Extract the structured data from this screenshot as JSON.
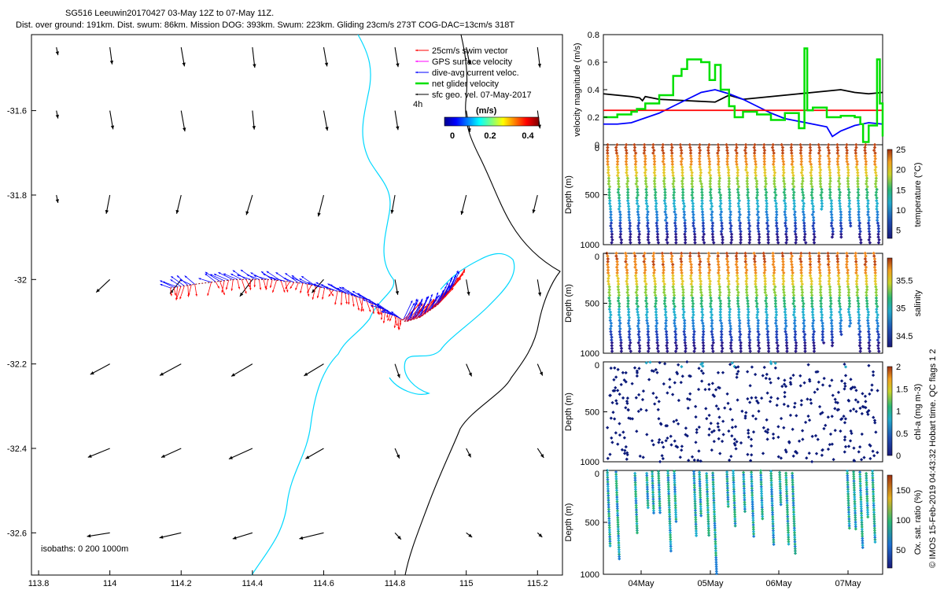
{
  "header": {
    "line1": "SG516 Leeuwin20170427 03-May 12Z to 07-May 11Z.",
    "line2": "Dist. over ground: 191km. Dist. swum: 86km. Mission DOG: 393km. Swum: 223km. Gliding 23cm/s 273T COG-DAC=13cm/s 318T"
  },
  "credit": "© IMOS 15-Feb-2019 04:43:32 Hobart time. QC flags 1  2",
  "colors": {
    "swim": "#ff0000",
    "gps": "#ff00ff",
    "dac": "#0000ff",
    "net": "#00e000",
    "geo": "#000000",
    "isobath_shallow": "#00d8ff",
    "isobath_deep": "#000000"
  },
  "chart_data": [
    {
      "type": "scatter",
      "title": "glider track map",
      "xlim": [
        113.78,
        115.27
      ],
      "ylim": [
        -32.7,
        -31.42
      ],
      "xticks": [
        113.8,
        114,
        114.2,
        114.4,
        114.6,
        114.8,
        115,
        115.2
      ],
      "xtick_labels": [
        "113.8",
        "114",
        "114.2",
        "114.4",
        "114.6",
        "114.8",
        "115",
        "115.2"
      ],
      "yticks": [
        -31.6,
        -31.8,
        -32,
        -32.2,
        -32.4,
        -32.6
      ],
      "ytick_labels": [
        "-31.6",
        "-31.8",
        "-32",
        "-32.2",
        "-32.4",
        "-32.6"
      ],
      "legend": [
        {
          "label": "25cm/s swim vector",
          "color": "#ff0000"
        },
        {
          "label": "GPS surface velocity",
          "color": "#ff00ff"
        },
        {
          "label": "dive-avg current veloc.",
          "color": "#0000ff"
        },
        {
          "label": "net glider velocity",
          "color": "#00e000"
        },
        {
          "label": "sfc geo. vel. 07-May-2017",
          "color": "#000000"
        }
      ],
      "legend_note": "4h",
      "colorbar": {
        "label": "(m/s)",
        "ticks": [
          "0",
          "0.2",
          "0.4"
        ],
        "range": [
          0,
          0.5
        ]
      },
      "isobath_note": "isobaths: 0   200  1000m",
      "track": {
        "lon": [
          114.17,
          114.25,
          114.35,
          114.45,
          114.55,
          114.65,
          114.73,
          114.79,
          114.83,
          114.87,
          114.92,
          114.96
        ],
        "lat": [
          -32.02,
          -32.01,
          -32.0,
          -32.0,
          -32.01,
          -32.03,
          -32.05,
          -32.08,
          -32.1,
          -32.09,
          -32.06,
          -32.02
        ]
      },
      "geo_vectors": {
        "lon": [
          114,
          114.2,
          114.4,
          114.6,
          114.8,
          115,
          115.2
        ],
        "lat": [
          -31.45,
          -31.6,
          -31.8,
          -32.0,
          -32.2,
          -32.4,
          -32.6
        ],
        "note": "surface geostrophic velocity field, mostly southward to south-westward"
      }
    },
    {
      "type": "line",
      "title": "velocity magnitude",
      "ylabel": "velocity magnitude (m/s)",
      "ylim": [
        0,
        0.8
      ],
      "yticks": [
        0,
        0.2,
        0.4,
        0.6,
        0.8
      ],
      "ytick_labels": [
        "0",
        "0.2",
        "0.4",
        "0.6",
        "0.8"
      ],
      "xlim": [
        0,
        100
      ],
      "series": [
        {
          "name": "sfc geo. vel.",
          "color": "#000000",
          "x": [
            0,
            5,
            10,
            13,
            14,
            15,
            20,
            30,
            40,
            45,
            50,
            55,
            60,
            65,
            70,
            75,
            80,
            85,
            90,
            95,
            100
          ],
          "values": [
            0.37,
            0.36,
            0.35,
            0.34,
            0.32,
            0.35,
            0.33,
            0.32,
            0.31,
            0.36,
            0.33,
            0.34,
            0.35,
            0.36,
            0.37,
            0.38,
            0.39,
            0.4,
            0.38,
            0.37,
            0.38
          ]
        },
        {
          "name": "dive-avg current",
          "color": "#0000ff",
          "x": [
            0,
            5,
            10,
            20,
            25,
            30,
            35,
            40,
            45,
            50,
            55,
            60,
            65,
            70,
            75,
            80,
            82,
            85,
            90,
            95,
            100
          ],
          "values": [
            0.15,
            0.15,
            0.16,
            0.23,
            0.28,
            0.33,
            0.38,
            0.4,
            0.37,
            0.33,
            0.28,
            0.23,
            0.19,
            0.17,
            0.15,
            0.13,
            0.06,
            0.1,
            0.14,
            0.16,
            0.15
          ]
        },
        {
          "name": "25cm/s swim",
          "color": "#ff0000",
          "x": [
            0,
            100
          ],
          "values": [
            0.25,
            0.25
          ]
        },
        {
          "name": "net glider velocity",
          "color": "#00e000",
          "x": [
            0,
            5,
            10,
            12,
            15,
            20,
            25,
            28,
            30,
            35,
            38,
            40,
            42,
            45,
            47,
            50,
            55,
            60,
            65,
            70,
            72,
            73,
            75,
            80,
            85,
            90,
            92,
            93,
            95,
            98,
            99,
            100
          ],
          "values": [
            0.2,
            0.22,
            0.24,
            0.26,
            0.3,
            0.36,
            0.5,
            0.55,
            0.62,
            0.6,
            0.47,
            0.58,
            0.4,
            0.28,
            0.2,
            0.24,
            0.22,
            0.18,
            0.23,
            0.12,
            0.7,
            0.25,
            0.27,
            0.2,
            0.21,
            0.2,
            0.15,
            0.02,
            0.14,
            0.62,
            0.3,
            0.06
          ]
        }
      ]
    },
    {
      "type": "scatter",
      "title": "temperature sections",
      "ylabel": "Depth (m)",
      "yticks": [
        0,
        500,
        1000
      ],
      "ytick_labels": [
        "0",
        "500",
        "1000"
      ],
      "colorbar": {
        "label": "temperature (°C)",
        "ticks": [
          "25",
          "20",
          "15",
          "10",
          "5"
        ],
        "range": [
          3,
          25
        ]
      }
    },
    {
      "type": "scatter",
      "title": "salinity sections",
      "ylabel": "Depth (m)",
      "yticks": [
        0,
        500,
        1000
      ],
      "ytick_labels": [
        "0",
        "500",
        "1000"
      ],
      "colorbar": {
        "label": "salinity",
        "ticks": [
          "35.5",
          "35",
          "34.5"
        ],
        "range": [
          34.3,
          35.9
        ]
      }
    },
    {
      "type": "scatter",
      "title": "chlorophyll sections",
      "ylabel": "Depth (m)",
      "yticks": [
        0,
        500,
        1000
      ],
      "ytick_labels": [
        "0",
        "500",
        "1000"
      ],
      "colorbar": {
        "label": "chl-a (mg m-3)",
        "ticks": [
          "2",
          "1.5",
          "1",
          "0.5",
          "0"
        ],
        "range": [
          0,
          2
        ]
      }
    },
    {
      "type": "scatter",
      "title": "oxygen saturation sections",
      "ylabel": "Depth (m)",
      "yticks": [
        0,
        500,
        1000
      ],
      "ytick_labels": [
        "0",
        "500",
        "1000"
      ],
      "colorbar": {
        "label": "Ox. sat. ratio (%)",
        "ticks": [
          "150",
          "100",
          "50"
        ],
        "range": [
          20,
          175
        ]
      },
      "xtick_labels": [
        "04May",
        "05May",
        "06May",
        "07May"
      ]
    }
  ]
}
